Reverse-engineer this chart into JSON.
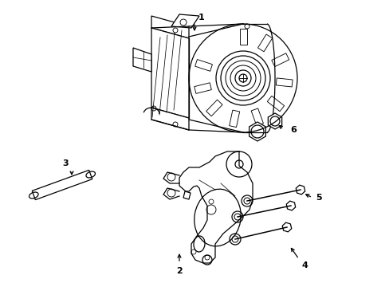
{
  "bg": "#ffffff",
  "fc": "#000000",
  "lw": 0.9,
  "fig_w": 4.89,
  "fig_h": 3.6,
  "dpi": 100,
  "label_fs": 8
}
